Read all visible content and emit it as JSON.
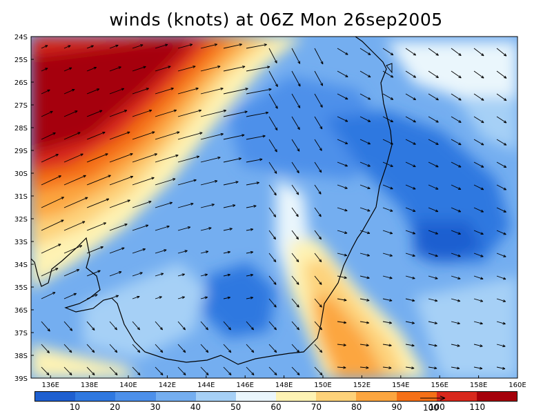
{
  "title": "winds (knots) at 06Z Mon 26sep2005",
  "map": {
    "lat_labels": [
      "24S",
      "25S",
      "26S",
      "27S",
      "28S",
      "29S",
      "30S",
      "31S",
      "32S",
      "33S",
      "34S",
      "35S",
      "36S",
      "37S",
      "38S",
      "39S"
    ],
    "lon_labels": [
      "136E",
      "138E",
      "140E",
      "142E",
      "144E",
      "146E",
      "148E",
      "150E",
      "152E",
      "154E",
      "156E",
      "158E",
      "160E"
    ],
    "lat_range": [
      -39,
      -24
    ],
    "lon_range": [
      135,
      160
    ]
  },
  "colorbar": {
    "colors": [
      "#1e5fd0",
      "#2f78e0",
      "#4d90ea",
      "#74aef0",
      "#a6d0f6",
      "#eaf6fc",
      "#fef3b4",
      "#fdd27a",
      "#fca640",
      "#f57017",
      "#d8281c",
      "#a5000a"
    ],
    "labels": [
      "10",
      "20",
      "30",
      "40",
      "50",
      "60",
      "70",
      "80",
      "90",
      "100",
      "110"
    ]
  },
  "reference_vector": {
    "label": "100"
  }
}
